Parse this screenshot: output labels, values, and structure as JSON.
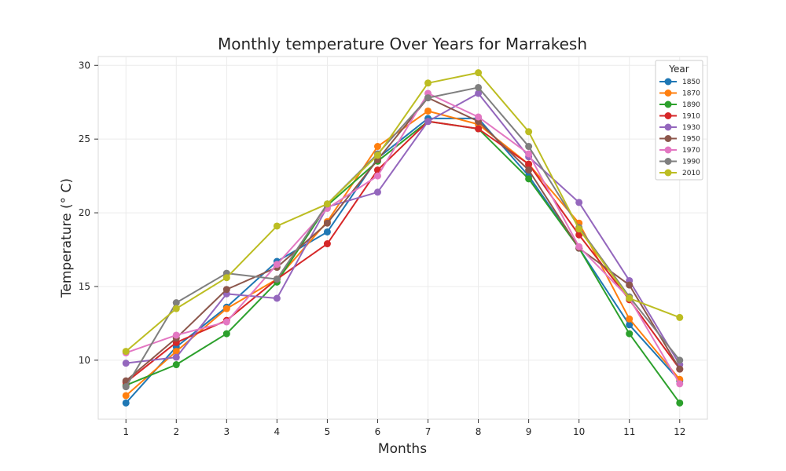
{
  "chart_data": {
    "type": "line",
    "title": "Monthly temperature Over Years for Marrakesh",
    "xlabel": "Months",
    "ylabel": "Temperature (° C)",
    "x": [
      1,
      2,
      3,
      4,
      5,
      6,
      7,
      8,
      9,
      10,
      11,
      12
    ],
    "xlim": [
      0.45,
      12.55
    ],
    "ylim": [
      6.0,
      30.6
    ],
    "yticks": [
      10,
      15,
      20,
      25,
      30
    ],
    "grid": true,
    "legend": {
      "title": "Year",
      "placement": "top-right"
    },
    "series": [
      {
        "name": "1850",
        "color": "#1f77b4",
        "values": [
          7.1,
          10.9,
          13.6,
          16.7,
          18.7,
          23.7,
          26.4,
          26.4,
          22.5,
          17.6,
          12.4,
          8.6
        ]
      },
      {
        "name": "1870",
        "color": "#ff7f0e",
        "values": [
          7.6,
          10.6,
          13.5,
          15.5,
          19.4,
          24.5,
          26.9,
          26.0,
          23.3,
          19.3,
          12.8,
          8.7
        ]
      },
      {
        "name": "1890",
        "color": "#2ca02c",
        "values": [
          8.3,
          9.7,
          11.8,
          15.3,
          20.5,
          23.5,
          26.2,
          25.7,
          22.3,
          17.6,
          11.8,
          7.1
        ]
      },
      {
        "name": "1910",
        "color": "#d62728",
        "values": [
          8.5,
          11.2,
          12.7,
          15.5,
          17.9,
          22.9,
          26.2,
          25.7,
          23.3,
          18.5,
          14.1,
          9.4
        ]
      },
      {
        "name": "1930",
        "color": "#9467bd",
        "values": [
          9.8,
          10.2,
          14.5,
          14.2,
          20.4,
          21.4,
          26.2,
          28.1,
          23.8,
          20.7,
          15.4,
          9.7
        ]
      },
      {
        "name": "1950",
        "color": "#8c564b",
        "values": [
          8.6,
          11.5,
          14.8,
          16.3,
          19.3,
          23.6,
          27.8,
          26.2,
          22.9,
          17.6,
          15.1,
          9.4
        ]
      },
      {
        "name": "1970",
        "color": "#e377c2",
        "values": [
          10.5,
          11.7,
          12.6,
          16.5,
          20.3,
          22.5,
          28.1,
          26.5,
          24.0,
          17.7,
          14.2,
          8.4
        ]
      },
      {
        "name": "1990",
        "color": "#7f7f7f",
        "values": [
          8.2,
          13.9,
          15.9,
          15.5,
          20.6,
          24.0,
          27.8,
          28.5,
          24.5,
          19.0,
          14.3,
          10.0
        ]
      },
      {
        "name": "2010",
        "color": "#bcbd22",
        "values": [
          10.6,
          13.5,
          15.6,
          19.1,
          20.6,
          23.9,
          28.8,
          29.5,
          25.5,
          18.9,
          14.2,
          12.9
        ]
      }
    ]
  }
}
